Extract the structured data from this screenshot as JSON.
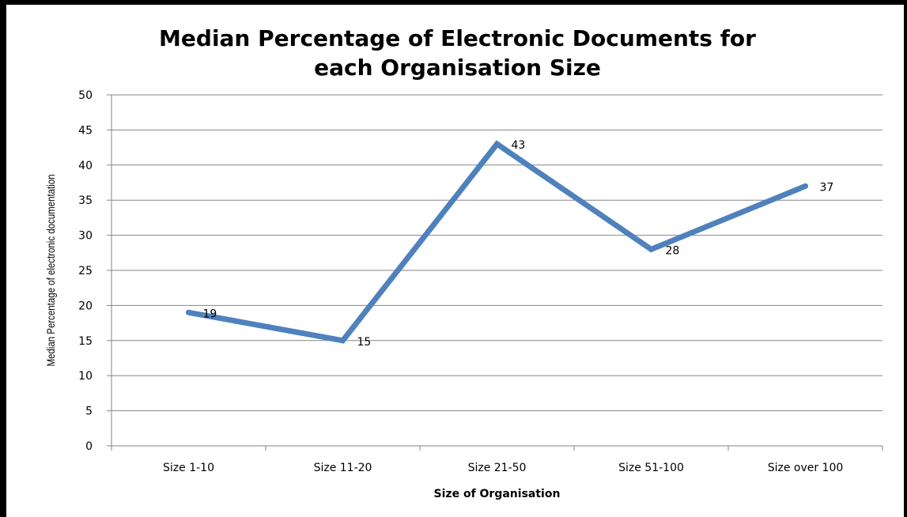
{
  "chart_data": {
    "type": "line",
    "title": "Median Percentage of Electronic Documents for\neach Organisation Size",
    "xlabel": "Size of Organisation",
    "ylabel": "Median Percentage of electronic documentation",
    "categories": [
      "Size 1-10",
      "Size 11-20",
      "Size 21-50",
      "Size 51-100",
      "Size over 100"
    ],
    "series": [
      {
        "values": [
          19,
          15,
          43,
          28,
          37
        ],
        "data_labels": [
          "19",
          "15",
          "43",
          "28",
          "37"
        ],
        "color": "#4F81BD"
      }
    ],
    "ylim": [
      0,
      50
    ],
    "yticks": [
      "0",
      "5",
      "10",
      "15",
      "20",
      "25",
      "30",
      "35",
      "40",
      "45",
      "50"
    ],
    "grid": true,
    "legend": "none"
  },
  "colors": {
    "line": "#4F81BD",
    "grid": "#868686",
    "axis": "#868686"
  }
}
